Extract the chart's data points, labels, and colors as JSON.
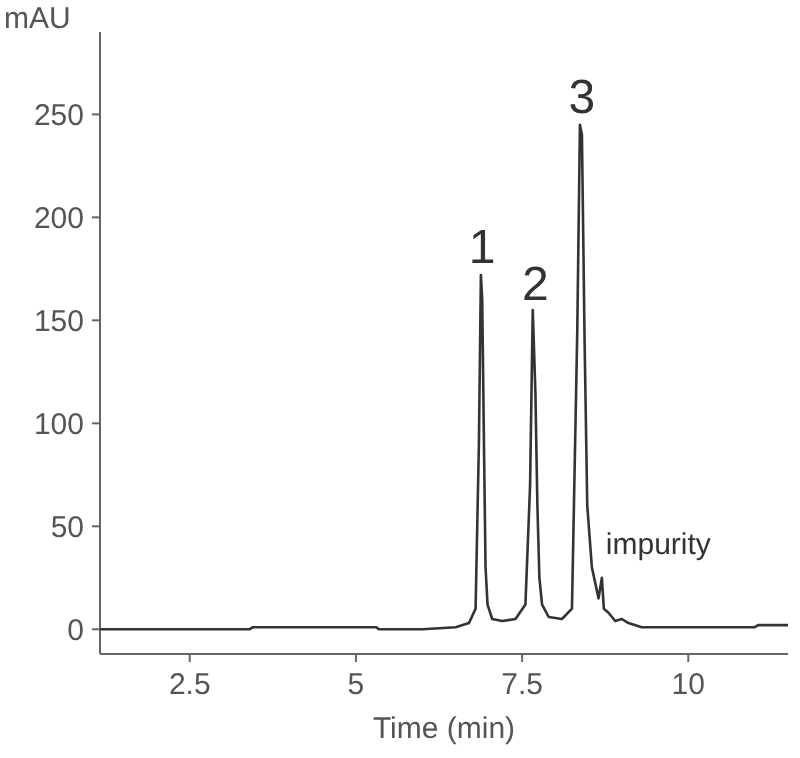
{
  "chart_data": {
    "type": "line",
    "xlabel": "Time (min)",
    "ylabel": "mAU",
    "xlim": [
      1.15,
      11.5
    ],
    "ylim": [
      -12,
      290
    ],
    "xticks": [
      2.5,
      5,
      7.5,
      10
    ],
    "yticks": [
      0,
      50,
      100,
      150,
      200,
      250
    ],
    "series": [
      {
        "color": "#333333",
        "x": [
          1.15,
          2,
          3,
          3.4,
          3.45,
          4,
          5,
          5.3,
          5.35,
          6,
          6.5,
          6.7,
          6.8,
          6.85,
          6.88,
          6.9,
          6.93,
          6.95,
          6.98,
          7.05,
          7.2,
          7.4,
          7.55,
          7.62,
          7.66,
          7.7,
          7.73,
          7.76,
          7.8,
          7.9,
          8.1,
          8.25,
          8.33,
          8.37,
          8.4,
          8.44,
          8.48,
          8.55,
          8.65,
          8.7,
          8.73,
          8.8,
          8.9,
          9.0,
          9.1,
          9.3,
          10,
          11,
          11.05,
          11.5
        ],
        "values": [
          0,
          0,
          0,
          0,
          1,
          1,
          1,
          1,
          0,
          0,
          1,
          3,
          10,
          90,
          172,
          160,
          80,
          30,
          12,
          5,
          4,
          5,
          12,
          70,
          155,
          115,
          60,
          25,
          12,
          6,
          5,
          10,
          145,
          245,
          240,
          140,
          60,
          30,
          15,
          25,
          10,
          8,
          4,
          5,
          3,
          1,
          1,
          1,
          2,
          2
        ]
      }
    ],
    "annotations": [
      {
        "text": "1",
        "x": 6.9,
        "y": 172
      },
      {
        "text": "2",
        "x": 7.7,
        "y": 154
      },
      {
        "text": "3",
        "x": 8.4,
        "y": 245
      },
      {
        "text": "impurity",
        "x": 8.7,
        "y": 25
      }
    ]
  }
}
